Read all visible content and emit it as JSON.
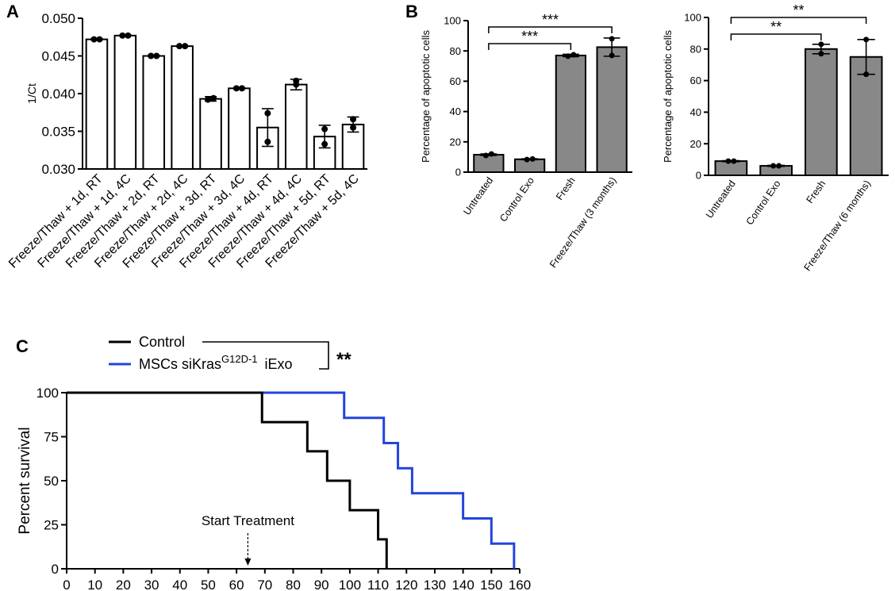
{
  "panels": {
    "a": "A",
    "b": "B",
    "c": "C"
  },
  "chart_data": [
    {
      "panel": "A",
      "type": "bar",
      "ylabel": "1/Ct",
      "ylim": [
        0.03,
        0.05
      ],
      "yticks": [
        "0.030",
        "0.035",
        "0.040",
        "0.045",
        "0.050"
      ],
      "categories": [
        "Freeze/Thaw + 1d, RT",
        "Freeze/Thaw + 1d, 4C",
        "Freeze/Thaw + 2d, RT",
        "Freeze/Thaw + 2d, 4C",
        "Freeze/Thaw + 3d, RT",
        "Freeze/Thaw + 3d, 4C",
        "Freeze/Thaw + 4d, RT",
        "Freeze/Thaw + 4d, 4C",
        "Freeze/Thaw + 5d, RT",
        "Freeze/Thaw + 5d, 4C"
      ],
      "values": [
        0.0472,
        0.0477,
        0.045,
        0.0463,
        0.0393,
        0.0407,
        0.0355,
        0.0412,
        0.0343,
        0.0359
      ],
      "errors": [
        0.0001,
        0.0001,
        0.0001,
        0.0001,
        0.0003,
        0.0001,
        0.0025,
        0.0007,
        0.0015,
        0.001
      ],
      "points": [
        [
          0.0472,
          0.0472
        ],
        [
          0.0477,
          0.0477
        ],
        [
          0.045,
          0.045
        ],
        [
          0.0463,
          0.0463
        ],
        [
          0.0392,
          0.0394
        ],
        [
          0.0407,
          0.0407
        ],
        [
          0.0374,
          0.0336
        ],
        [
          0.0417,
          0.0412
        ],
        [
          0.0353,
          0.0333
        ],
        [
          0.0366,
          0.0355
        ]
      ],
      "bar_color": "#ffffff"
    },
    {
      "panel": "B-left",
      "type": "bar",
      "ylabel": "Percentage of apoptotic cells",
      "ylim": [
        0,
        100
      ],
      "yticks": [
        "0",
        "20",
        "40",
        "60",
        "80",
        "100"
      ],
      "categories": [
        "Untreated",
        "Control Exo",
        "Fresh",
        "Freeze/Thaw (3 months)"
      ],
      "values": [
        11.5,
        8.5,
        77,
        82.5
      ],
      "errors": [
        0.5,
        0.3,
        0.8,
        6
      ],
      "points": [
        [
          11,
          12
        ],
        [
          8.3,
          8.7
        ],
        [
          76.5,
          77.5
        ],
        [
          88,
          77
        ]
      ],
      "bar_color": "#888888",
      "significance": [
        {
          "from": 0,
          "to": 3,
          "label": "***"
        },
        {
          "from": 0,
          "to": 2,
          "label": "***"
        }
      ]
    },
    {
      "panel": "B-right",
      "type": "bar",
      "ylabel": "Percentage of apoptotic cells",
      "ylim": [
        0,
        100
      ],
      "yticks": [
        "0",
        "20",
        "40",
        "60",
        "80",
        "100"
      ],
      "categories": [
        "Untreated",
        "Control Exo",
        "Fresh",
        "Freeze/Thaw (6 months)"
      ],
      "values": [
        9,
        6,
        80,
        75
      ],
      "errors": [
        0.3,
        0.3,
        3,
        11
      ],
      "points": [
        [
          9,
          9
        ],
        [
          6,
          6
        ],
        [
          83,
          77
        ],
        [
          86,
          64
        ]
      ],
      "bar_color": "#888888",
      "significance": [
        {
          "from": 0,
          "to": 3,
          "label": "**"
        },
        {
          "from": 0,
          "to": 2,
          "label": "**"
        }
      ]
    },
    {
      "panel": "C",
      "type": "line",
      "subtype": "step",
      "ylabel": "Percent survival",
      "xlim": [
        0,
        160
      ],
      "ylim": [
        0,
        100
      ],
      "xticks": [
        "0",
        "10",
        "20",
        "30",
        "40",
        "50",
        "60",
        "70",
        "80",
        "90",
        "100",
        "110",
        "120",
        "130",
        "140",
        "150",
        "160"
      ],
      "yticks": [
        "0",
        "25",
        "50",
        "75",
        "100"
      ],
      "series": [
        {
          "name": "Control",
          "color": "#000000",
          "x": [
            0,
            69,
            85,
            92,
            100,
            110,
            113
          ],
          "y": [
            100,
            83.3,
            66.7,
            50,
            33.3,
            16.7,
            0
          ]
        },
        {
          "name_parts": [
            "MSCs siKras",
            "G12D-1",
            " iExo"
          ],
          "color": "#2244dd",
          "x": [
            0,
            98,
            112,
            117,
            122,
            140,
            150,
            158
          ],
          "y": [
            100,
            85.7,
            71.4,
            57.1,
            42.9,
            28.6,
            14.3,
            0
          ]
        }
      ],
      "significance": "**",
      "annotation": {
        "text": "Start Treatment",
        "x": 64
      }
    }
  ]
}
